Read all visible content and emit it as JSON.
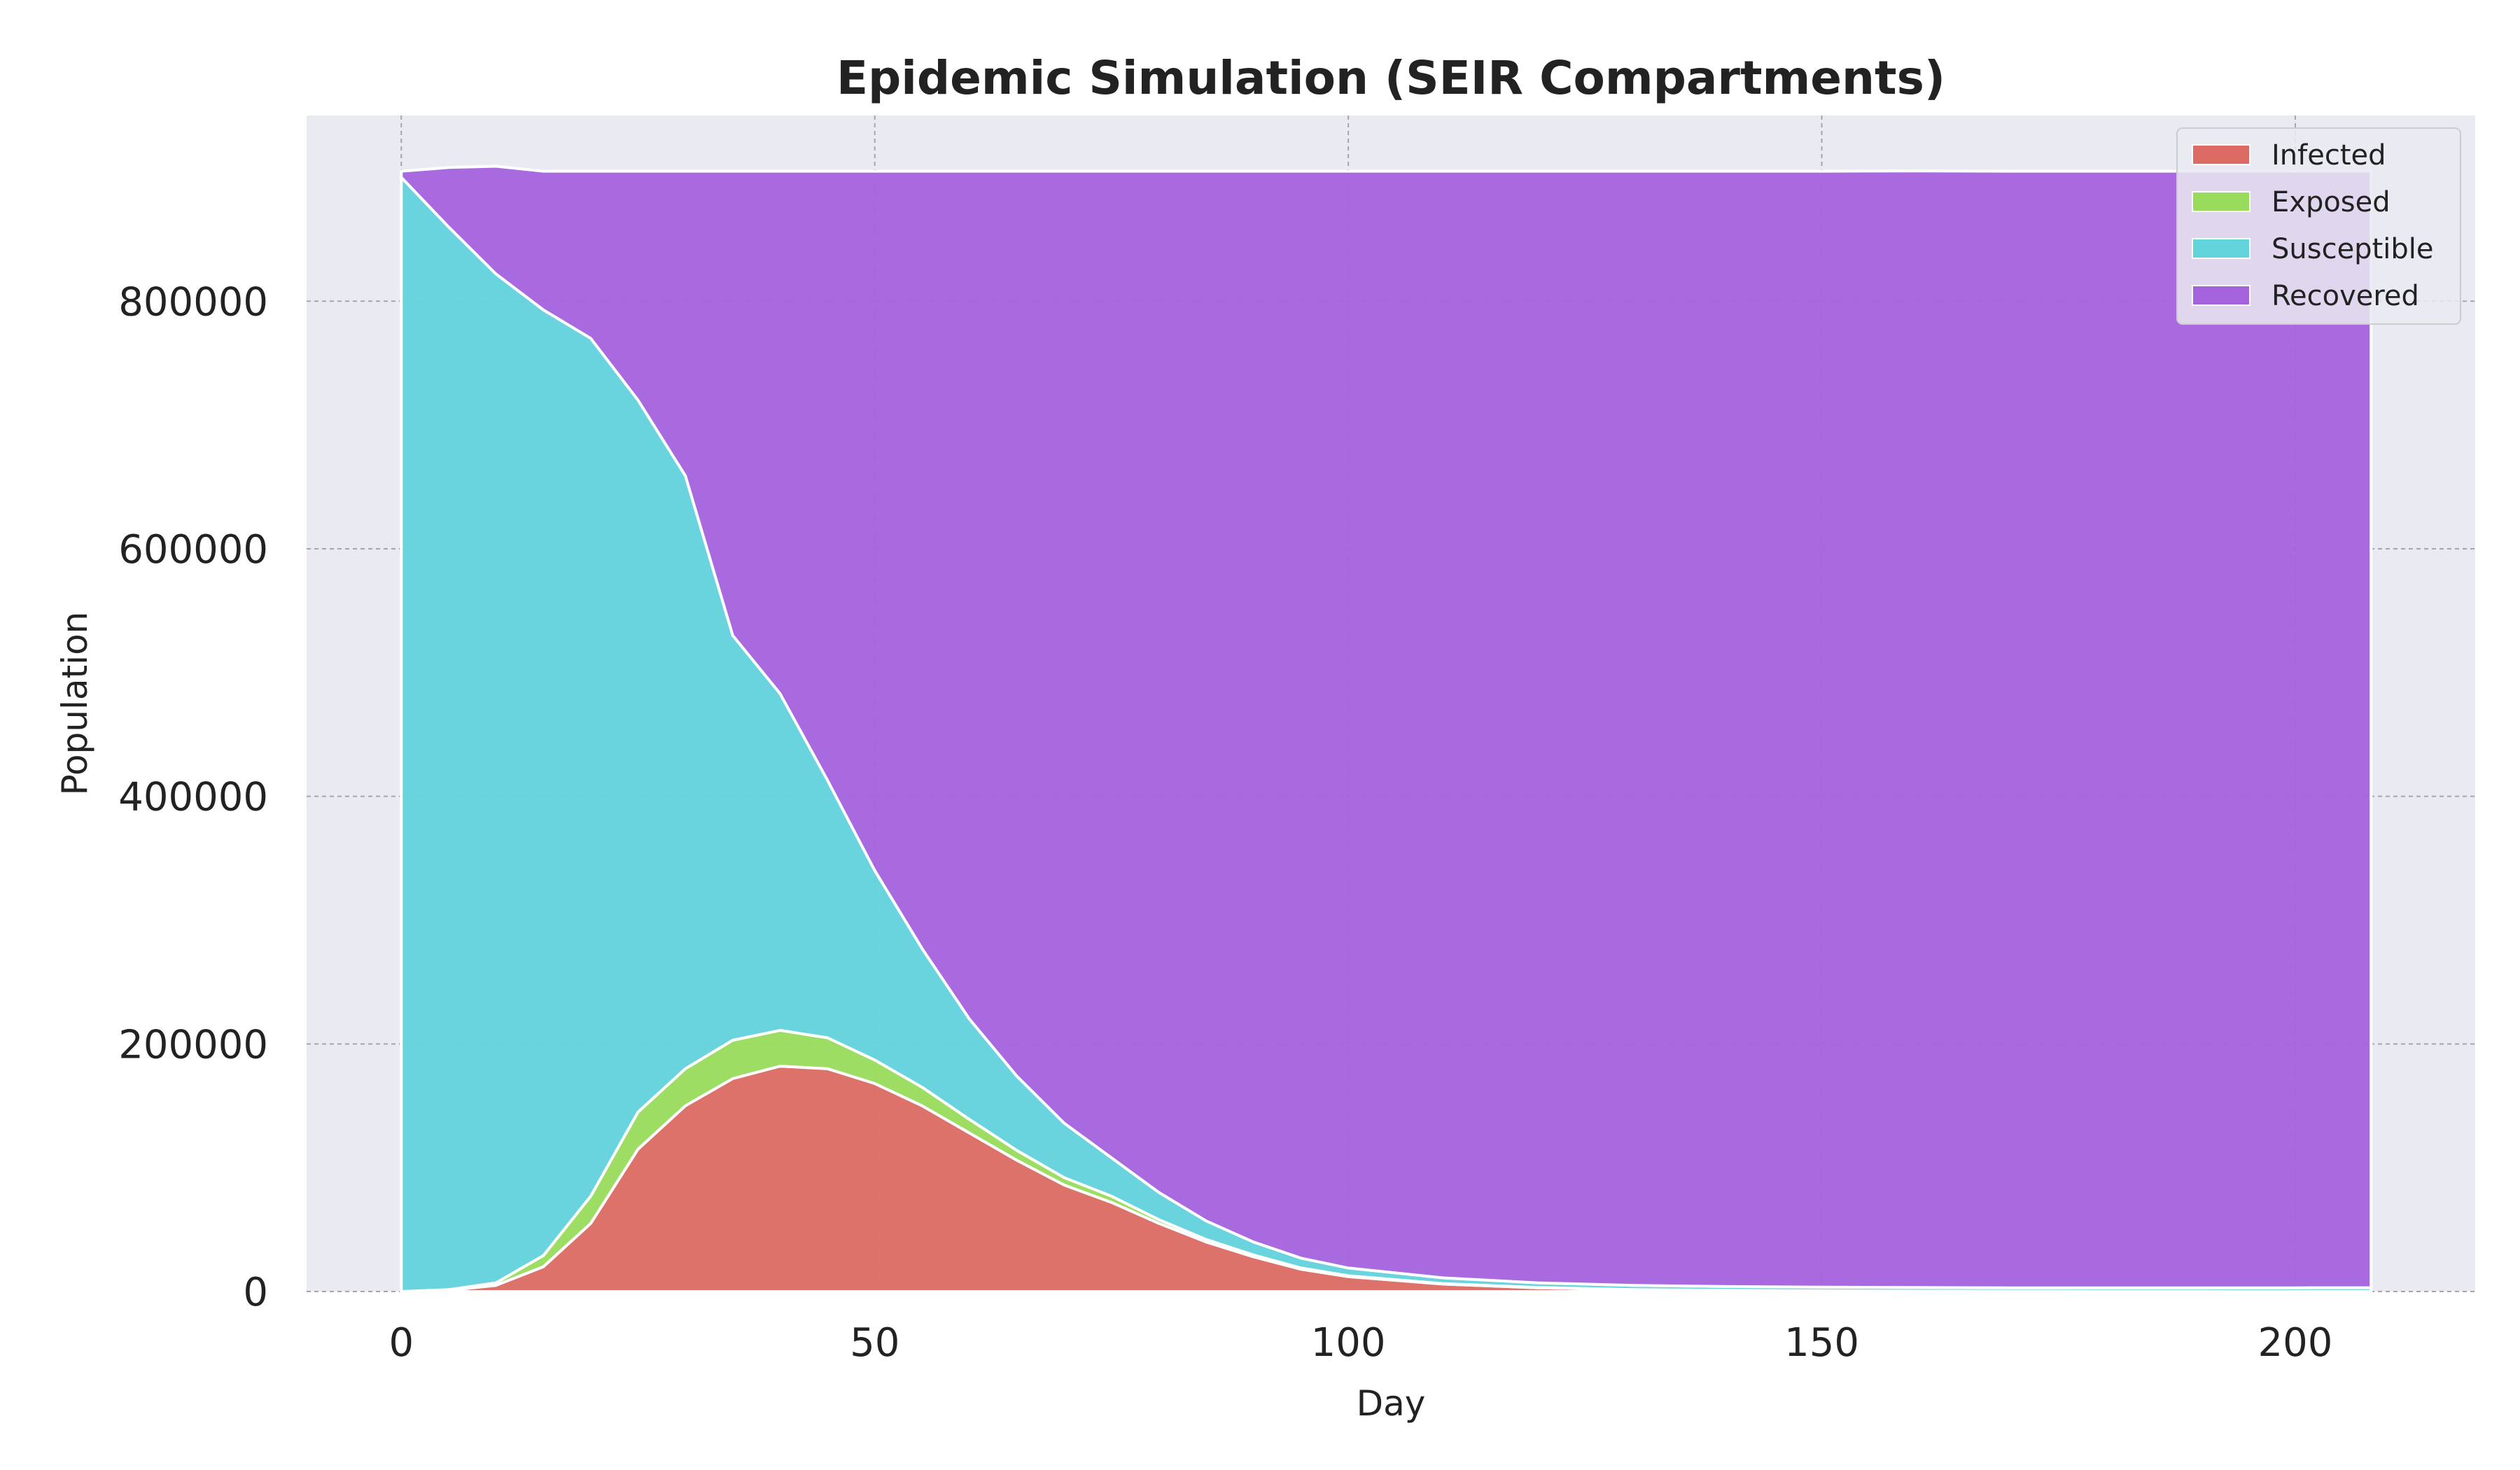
{
  "chart_data": {
    "type": "area",
    "stacked": true,
    "title": "Epidemic Simulation (SEIR Compartments)",
    "xlabel": "Day",
    "ylabel": "Population",
    "xlim": [
      -10,
      219
    ],
    "ylim": [
      0,
      950000
    ],
    "xticks": [
      0,
      50,
      100,
      150,
      200
    ],
    "yticks": [
      0,
      200000,
      400000,
      600000,
      800000
    ],
    "grid": true,
    "legend_position": "top-right",
    "x": [
      0,
      5,
      10,
      15,
      20,
      25,
      30,
      35,
      40,
      45,
      50,
      55,
      60,
      65,
      70,
      75,
      80,
      85,
      90,
      95,
      100,
      110,
      120,
      130,
      140,
      150,
      160,
      170,
      180,
      190,
      200,
      208
    ],
    "series": [
      {
        "name": "Infected",
        "color": "#dc6b63",
        "values": [
          0,
          1000,
          5000,
          20000,
          55000,
          115000,
          150000,
          172000,
          182000,
          180000,
          168000,
          150000,
          128000,
          106000,
          86000,
          72000,
          55000,
          40000,
          28000,
          18000,
          12000,
          6000,
          3000,
          1500,
          800,
          500,
          300,
          200,
          100,
          100,
          50,
          50
        ]
      },
      {
        "name": "Exposed",
        "color": "#99dc5c",
        "values": [
          0,
          500,
          2000,
          9000,
          22000,
          30000,
          30000,
          31000,
          29000,
          25000,
          19000,
          15000,
          11000,
          8000,
          6000,
          5000,
          3000,
          2000,
          1500,
          1000,
          700,
          400,
          200,
          100,
          100,
          50,
          0,
          0,
          0,
          0,
          0,
          0
        ]
      },
      {
        "name": "Susceptible",
        "color": "#63d3dc",
        "values": [
          900000,
          858500,
          815000,
          764000,
          693000,
          575000,
          479000,
          327000,
          272000,
          208000,
          153000,
          112000,
          81000,
          60000,
          44000,
          31000,
          22000,
          15000,
          10500,
          8000,
          6300,
          4600,
          3800,
          3400,
          3100,
          2950,
          2900,
          2800,
          2900,
          2900,
          2950,
          3000
        ]
      },
      {
        "name": "Recovered",
        "color": "#a463dc",
        "values": [
          5000,
          48000,
          87000,
          112000,
          135000,
          185000,
          246000,
          375000,
          422000,
          492000,
          565000,
          628000,
          685000,
          731000,
          769000,
          797000,
          825000,
          848000,
          865000,
          878000,
          886000,
          894000,
          898000,
          900000,
          901000,
          901500,
          902000,
          902000,
          902000,
          902000,
          902000,
          902000
        ]
      }
    ],
    "legend_order": [
      "Infected",
      "Exposed",
      "Susceptible",
      "Recovered"
    ]
  }
}
